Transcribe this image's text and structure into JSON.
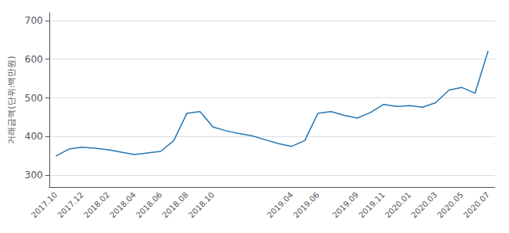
{
  "chart_data": {
    "type": "line",
    "ylabel": "거래금액(단위:백만원)",
    "categories": [
      "2017.10",
      null,
      "2017.12",
      null,
      "2018.02",
      null,
      "2018.04",
      null,
      "2018.06",
      null,
      "2018.08",
      null,
      "2018.10",
      null,
      null,
      null,
      null,
      null,
      "2019.04",
      null,
      "2019.06",
      null,
      null,
      "2019.09",
      null,
      "2019.11",
      null,
      "2020.01",
      null,
      "2020.03",
      null,
      "2020.05",
      null,
      "2020.07"
    ],
    "values": [
      350,
      368,
      373,
      370,
      366,
      360,
      354,
      358,
      362,
      390,
      460,
      465,
      425,
      415,
      408,
      402,
      392,
      382,
      375,
      390,
      460,
      465,
      455,
      448,
      462,
      483,
      478,
      480,
      476,
      488,
      520,
      527,
      512,
      622
    ],
    "color": "#2878b5",
    "ylim": [
      270,
      720
    ],
    "yticks": [
      300,
      400,
      500,
      600,
      700
    ],
    "grid": true
  }
}
